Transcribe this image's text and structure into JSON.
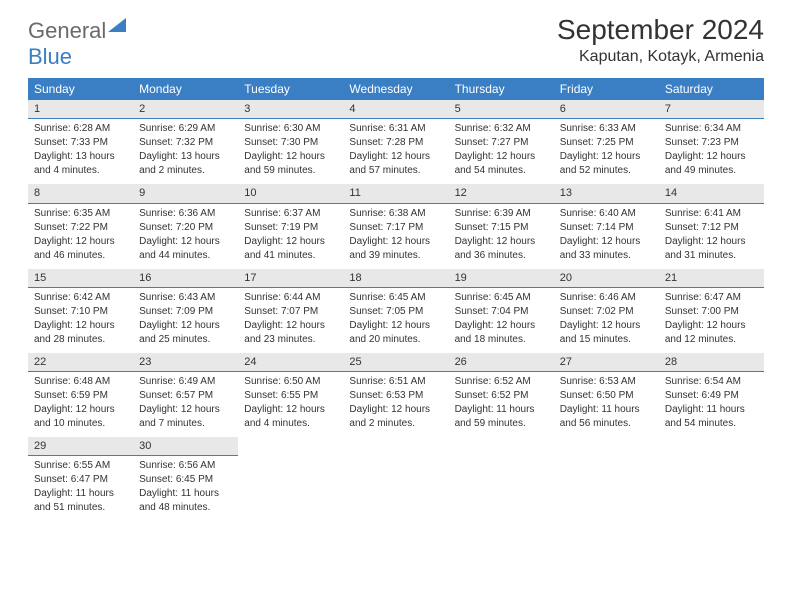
{
  "logo": {
    "word1": "General",
    "word2": "Blue"
  },
  "header": {
    "month_title": "September 2024",
    "location": "Kaputan, Kotayk, Armenia"
  },
  "colors": {
    "brand_blue": "#3a7ec3",
    "header_bg": "#3a7ec3",
    "header_text": "#ffffff",
    "daynum_bg": "#e8e8e8",
    "daynum_border": "#3a7ec3",
    "body_text": "#333333",
    "logo_gray": "#6a6a6a"
  },
  "weekdays": [
    "Sunday",
    "Monday",
    "Tuesday",
    "Wednesday",
    "Thursday",
    "Friday",
    "Saturday"
  ],
  "days": [
    {
      "n": "1",
      "sunrise": "Sunrise: 6:28 AM",
      "sunset": "Sunset: 7:33 PM",
      "day1": "Daylight: 13 hours",
      "day2": "and 4 minutes."
    },
    {
      "n": "2",
      "sunrise": "Sunrise: 6:29 AM",
      "sunset": "Sunset: 7:32 PM",
      "day1": "Daylight: 13 hours",
      "day2": "and 2 minutes."
    },
    {
      "n": "3",
      "sunrise": "Sunrise: 6:30 AM",
      "sunset": "Sunset: 7:30 PM",
      "day1": "Daylight: 12 hours",
      "day2": "and 59 minutes."
    },
    {
      "n": "4",
      "sunrise": "Sunrise: 6:31 AM",
      "sunset": "Sunset: 7:28 PM",
      "day1": "Daylight: 12 hours",
      "day2": "and 57 minutes."
    },
    {
      "n": "5",
      "sunrise": "Sunrise: 6:32 AM",
      "sunset": "Sunset: 7:27 PM",
      "day1": "Daylight: 12 hours",
      "day2": "and 54 minutes."
    },
    {
      "n": "6",
      "sunrise": "Sunrise: 6:33 AM",
      "sunset": "Sunset: 7:25 PM",
      "day1": "Daylight: 12 hours",
      "day2": "and 52 minutes."
    },
    {
      "n": "7",
      "sunrise": "Sunrise: 6:34 AM",
      "sunset": "Sunset: 7:23 PM",
      "day1": "Daylight: 12 hours",
      "day2": "and 49 minutes."
    },
    {
      "n": "8",
      "sunrise": "Sunrise: 6:35 AM",
      "sunset": "Sunset: 7:22 PM",
      "day1": "Daylight: 12 hours",
      "day2": "and 46 minutes."
    },
    {
      "n": "9",
      "sunrise": "Sunrise: 6:36 AM",
      "sunset": "Sunset: 7:20 PM",
      "day1": "Daylight: 12 hours",
      "day2": "and 44 minutes."
    },
    {
      "n": "10",
      "sunrise": "Sunrise: 6:37 AM",
      "sunset": "Sunset: 7:19 PM",
      "day1": "Daylight: 12 hours",
      "day2": "and 41 minutes."
    },
    {
      "n": "11",
      "sunrise": "Sunrise: 6:38 AM",
      "sunset": "Sunset: 7:17 PM",
      "day1": "Daylight: 12 hours",
      "day2": "and 39 minutes."
    },
    {
      "n": "12",
      "sunrise": "Sunrise: 6:39 AM",
      "sunset": "Sunset: 7:15 PM",
      "day1": "Daylight: 12 hours",
      "day2": "and 36 minutes."
    },
    {
      "n": "13",
      "sunrise": "Sunrise: 6:40 AM",
      "sunset": "Sunset: 7:14 PM",
      "day1": "Daylight: 12 hours",
      "day2": "and 33 minutes."
    },
    {
      "n": "14",
      "sunrise": "Sunrise: 6:41 AM",
      "sunset": "Sunset: 7:12 PM",
      "day1": "Daylight: 12 hours",
      "day2": "and 31 minutes."
    },
    {
      "n": "15",
      "sunrise": "Sunrise: 6:42 AM",
      "sunset": "Sunset: 7:10 PM",
      "day1": "Daylight: 12 hours",
      "day2": "and 28 minutes."
    },
    {
      "n": "16",
      "sunrise": "Sunrise: 6:43 AM",
      "sunset": "Sunset: 7:09 PM",
      "day1": "Daylight: 12 hours",
      "day2": "and 25 minutes."
    },
    {
      "n": "17",
      "sunrise": "Sunrise: 6:44 AM",
      "sunset": "Sunset: 7:07 PM",
      "day1": "Daylight: 12 hours",
      "day2": "and 23 minutes."
    },
    {
      "n": "18",
      "sunrise": "Sunrise: 6:45 AM",
      "sunset": "Sunset: 7:05 PM",
      "day1": "Daylight: 12 hours",
      "day2": "and 20 minutes."
    },
    {
      "n": "19",
      "sunrise": "Sunrise: 6:45 AM",
      "sunset": "Sunset: 7:04 PM",
      "day1": "Daylight: 12 hours",
      "day2": "and 18 minutes."
    },
    {
      "n": "20",
      "sunrise": "Sunrise: 6:46 AM",
      "sunset": "Sunset: 7:02 PM",
      "day1": "Daylight: 12 hours",
      "day2": "and 15 minutes."
    },
    {
      "n": "21",
      "sunrise": "Sunrise: 6:47 AM",
      "sunset": "Sunset: 7:00 PM",
      "day1": "Daylight: 12 hours",
      "day2": "and 12 minutes."
    },
    {
      "n": "22",
      "sunrise": "Sunrise: 6:48 AM",
      "sunset": "Sunset: 6:59 PM",
      "day1": "Daylight: 12 hours",
      "day2": "and 10 minutes."
    },
    {
      "n": "23",
      "sunrise": "Sunrise: 6:49 AM",
      "sunset": "Sunset: 6:57 PM",
      "day1": "Daylight: 12 hours",
      "day2": "and 7 minutes."
    },
    {
      "n": "24",
      "sunrise": "Sunrise: 6:50 AM",
      "sunset": "Sunset: 6:55 PM",
      "day1": "Daylight: 12 hours",
      "day2": "and 4 minutes."
    },
    {
      "n": "25",
      "sunrise": "Sunrise: 6:51 AM",
      "sunset": "Sunset: 6:53 PM",
      "day1": "Daylight: 12 hours",
      "day2": "and 2 minutes."
    },
    {
      "n": "26",
      "sunrise": "Sunrise: 6:52 AM",
      "sunset": "Sunset: 6:52 PM",
      "day1": "Daylight: 11 hours",
      "day2": "and 59 minutes."
    },
    {
      "n": "27",
      "sunrise": "Sunrise: 6:53 AM",
      "sunset": "Sunset: 6:50 PM",
      "day1": "Daylight: 11 hours",
      "day2": "and 56 minutes."
    },
    {
      "n": "28",
      "sunrise": "Sunrise: 6:54 AM",
      "sunset": "Sunset: 6:49 PM",
      "day1": "Daylight: 11 hours",
      "day2": "and 54 minutes."
    },
    {
      "n": "29",
      "sunrise": "Sunrise: 6:55 AM",
      "sunset": "Sunset: 6:47 PM",
      "day1": "Daylight: 11 hours",
      "day2": "and 51 minutes."
    },
    {
      "n": "30",
      "sunrise": "Sunrise: 6:56 AM",
      "sunset": "Sunset: 6:45 PM",
      "day1": "Daylight: 11 hours",
      "day2": "and 48 minutes."
    }
  ]
}
